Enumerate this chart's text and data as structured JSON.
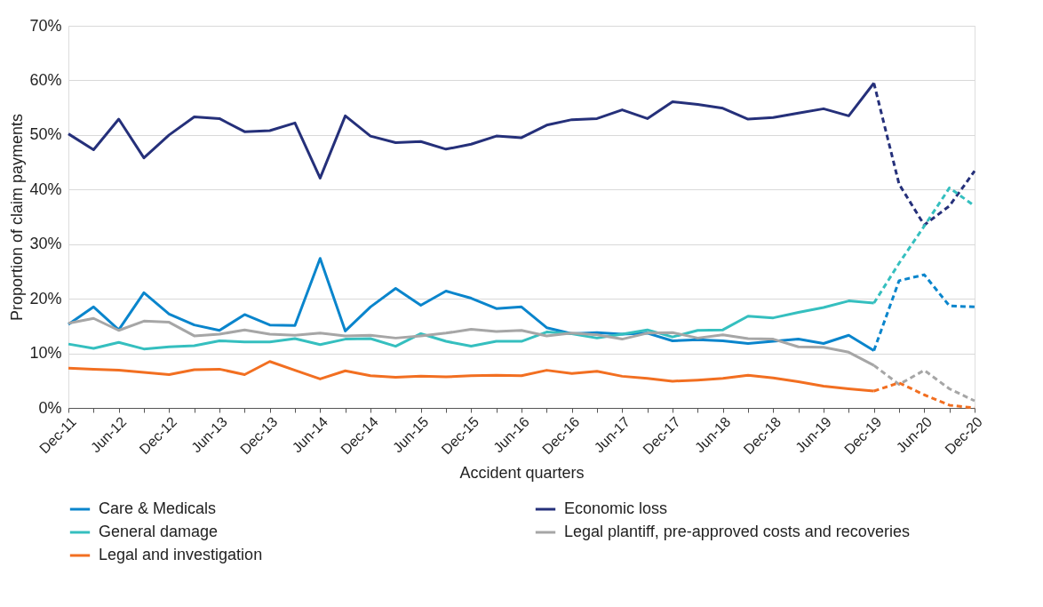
{
  "chart_data": {
    "type": "line",
    "xlabel": "Accident quarters",
    "ylabel": "Proportion of claim payments",
    "categories": [
      "Dec-11",
      null,
      "Jun-12",
      null,
      "Dec-12",
      null,
      "Jun-13",
      null,
      "Dec-13",
      null,
      "Jun-14",
      null,
      "Dec-14",
      null,
      "Jun-15",
      null,
      "Dec-15",
      null,
      "Jun-16",
      null,
      "Dec-16",
      null,
      "Jun-17",
      null,
      "Dec-17",
      null,
      "Jun-18",
      null,
      "Dec-18",
      null,
      "Jun-19",
      null,
      "Dec-19",
      null,
      "Jun-20",
      null,
      "Dec-20"
    ],
    "ylim": [
      0,
      70
    ],
    "yticks": [
      {
        "value": 0,
        "label": "0%"
      },
      {
        "value": 10,
        "label": "10%"
      },
      {
        "value": 20,
        "label": "20%"
      },
      {
        "value": 30,
        "label": "30%"
      },
      {
        "value": 40,
        "label": "40%"
      },
      {
        "value": 50,
        "label": "50%"
      },
      {
        "value": 60,
        "label": "60%"
      },
      {
        "value": 70,
        "label": "70%"
      }
    ],
    "grid": "y",
    "legend": "bottom",
    "marker": "none",
    "line_style": "solid",
    "series": [
      {
        "name": "Care & Medicals",
        "color": "#0a85cc",
        "values": [
          15.3,
          18.5,
          14.3,
          21.1,
          17.2,
          15.2,
          14.2,
          17.1,
          15.2,
          15.1,
          27.4,
          14.1,
          18.5,
          21.9,
          18.8,
          21.4,
          20.1,
          18.2,
          18.5,
          14.7,
          13.6,
          13.8,
          13.5,
          13.7,
          12.3,
          12.5,
          12.3,
          11.8,
          12.2,
          12.6,
          11.8,
          13.3,
          10.5,
          null,
          null,
          null,
          null
        ]
      },
      {
        "name": "Economic loss",
        "color": "#25307a",
        "values": [
          50.2,
          47.3,
          52.9,
          45.8,
          50,
          53.3,
          53,
          50.6,
          50.8,
          52.2,
          42.1,
          53.5,
          49.8,
          48.6,
          48.8,
          47.4,
          48.3,
          49.8,
          49.5,
          51.8,
          52.8,
          53,
          54.6,
          53,
          56.1,
          55.6,
          54.9,
          52.9,
          53.2,
          54,
          54.8,
          53.5,
          59.5,
          null,
          null,
          null,
          null
        ]
      },
      {
        "name": "General damage",
        "color": "#35bfbf",
        "values": [
          11.7,
          10.9,
          12,
          10.8,
          11.2,
          11.4,
          12.3,
          12.1,
          12.1,
          12.7,
          11.6,
          12.6,
          12.7,
          11.3,
          13.6,
          12.2,
          11.3,
          12.2,
          12.2,
          13.9,
          13.6,
          12.8,
          13.5,
          14.3,
          13,
          14.2,
          14.3,
          16.8,
          16.5,
          17.5,
          18.4,
          19.6,
          19.2,
          null,
          null,
          null,
          null
        ]
      },
      {
        "name": "Legal plantiff, pre-approved costs and recoveries",
        "color": "#a6a6a6",
        "values": [
          15.5,
          16.4,
          14.2,
          15.9,
          15.7,
          13.2,
          13.5,
          14.3,
          13.5,
          13.3,
          13.7,
          13.2,
          13.3,
          12.8,
          13.2,
          13.7,
          14.4,
          14,
          14.2,
          13.2,
          13.7,
          13.4,
          12.6,
          13.7,
          13.8,
          12.8,
          13.4,
          12.7,
          12.6,
          11.2,
          11.1,
          10.2,
          7.8,
          null,
          null,
          null,
          null
        ]
      },
      {
        "name": "Legal and investigation",
        "color": "#f26f21",
        "values": [
          7.3,
          7.1,
          6.9,
          6.5,
          6.1,
          7,
          7.1,
          6.1,
          8.5,
          6.9,
          5.3,
          6.8,
          5.9,
          5.6,
          5.8,
          5.7,
          5.9,
          6,
          5.9,
          6.9,
          6.3,
          6.7,
          5.8,
          5.4,
          4.9,
          5.1,
          5.4,
          6,
          5.5,
          4.8,
          4,
          3.5,
          3.1,
          null,
          null,
          null,
          null
        ]
      },
      {
        "color": "#0a85cc",
        "line_style": "dashed",
        "values": [
          null,
          null,
          null,
          null,
          null,
          null,
          null,
          null,
          null,
          null,
          null,
          null,
          null,
          null,
          null,
          null,
          null,
          null,
          null,
          null,
          null,
          null,
          null,
          null,
          null,
          null,
          null,
          null,
          null,
          null,
          null,
          null,
          10.5,
          23.3,
          24.4,
          18.7,
          18.5
        ]
      },
      {
        "color": "#25307a",
        "line_style": "dashed",
        "values": [
          null,
          null,
          null,
          null,
          null,
          null,
          null,
          null,
          null,
          null,
          null,
          null,
          null,
          null,
          null,
          null,
          null,
          null,
          null,
          null,
          null,
          null,
          null,
          null,
          null,
          null,
          null,
          null,
          null,
          null,
          null,
          null,
          59.5,
          41,
          33.5,
          37,
          43.4
        ]
      },
      {
        "color": "#35bfbf",
        "line_style": "dashed",
        "values": [
          null,
          null,
          null,
          null,
          null,
          null,
          null,
          null,
          null,
          null,
          null,
          null,
          null,
          null,
          null,
          null,
          null,
          null,
          null,
          null,
          null,
          null,
          null,
          null,
          null,
          null,
          null,
          null,
          null,
          null,
          null,
          null,
          19.2,
          26.5,
          33.3,
          40.3,
          37
        ]
      },
      {
        "color": "#a6a6a6",
        "line_style": "dashed",
        "values": [
          null,
          null,
          null,
          null,
          null,
          null,
          null,
          null,
          null,
          null,
          null,
          null,
          null,
          null,
          null,
          null,
          null,
          null,
          null,
          null,
          null,
          null,
          null,
          null,
          null,
          null,
          null,
          null,
          null,
          null,
          null,
          null,
          7.8,
          4.3,
          6.9,
          3.5,
          1.3
        ]
      },
      {
        "color": "#f26f21",
        "line_style": "dashed",
        "values": [
          null,
          null,
          null,
          null,
          null,
          null,
          null,
          null,
          null,
          null,
          null,
          null,
          null,
          null,
          null,
          null,
          null,
          null,
          null,
          null,
          null,
          null,
          null,
          null,
          null,
          null,
          null,
          null,
          null,
          null,
          null,
          null,
          3.1,
          4.6,
          2.4,
          0.5,
          0
        ]
      }
    ]
  }
}
